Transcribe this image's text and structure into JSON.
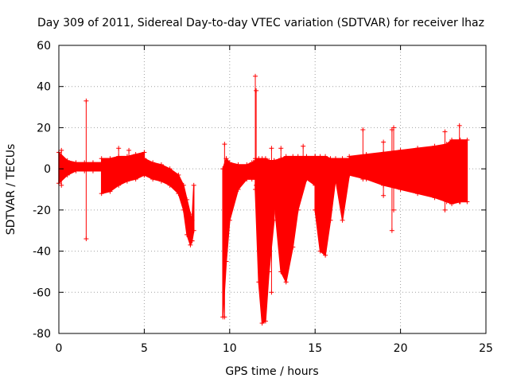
{
  "chart_data": {
    "type": "scatter",
    "title": "Day 309 of 2011, Sidereal Day-to-day VTEC variation (SDTVAR) for receiver lhaz",
    "xlabel": "GPS time / hours",
    "ylabel": "SDTVAR / TECUs",
    "xlim": [
      0,
      25
    ],
    "ylim": [
      -80,
      60
    ],
    "x_ticks": [
      0,
      5,
      10,
      15,
      20,
      25
    ],
    "y_ticks": [
      -80,
      -60,
      -40,
      -20,
      0,
      20,
      40,
      60
    ],
    "x_tick_labels": [
      "0",
      "5",
      "10",
      "15",
      "20",
      "25"
    ],
    "y_tick_labels": [
      "-80",
      "-60",
      "-40",
      "-20",
      "0",
      "20",
      "40",
      "60"
    ],
    "grid": true,
    "legend": "none",
    "color": "#ff0000",
    "series": [
      {
        "name": "SDTVAR",
        "marker": "+",
        "bands": [
          {
            "x": [
              0.0,
              0.5,
              1.0,
              1.5,
              2.0,
              2.5
            ],
            "upper": [
              8,
              4,
              3,
              3,
              3,
              3
            ],
            "lower": [
              -7,
              -3,
              -1,
              -1,
              -1,
              -1
            ]
          },
          {
            "x": [
              2.5,
              3.0,
              3.5,
              4.0,
              4.5,
              5.0
            ],
            "upper": [
              5,
              5,
              6,
              6,
              7,
              8
            ],
            "lower": [
              -12,
              -11,
              -8,
              -6,
              -5,
              -3
            ]
          },
          {
            "x": [
              5.0,
              5.5,
              6.0,
              6.5,
              7.0,
              7.3,
              7.5,
              7.7,
              7.8
            ],
            "upper": [
              5,
              3,
              2,
              0,
              -3,
              -8,
              -15,
              -22,
              -25
            ],
            "lower": [
              -3,
              -5,
              -6,
              -8,
              -12,
              -20,
              -32,
              -37,
              -35
            ]
          },
          {
            "x": [
              7.8,
              7.9
            ],
            "upper": [
              -25,
              -8
            ],
            "lower": [
              -35,
              -30
            ]
          },
          {
            "x": [
              9.6,
              9.8,
              10.0,
              10.5,
              11.0,
              11.3,
              11.5
            ],
            "upper": [
              0,
              5,
              3,
              2,
              2,
              3,
              4
            ],
            "lower": [
              -72,
              -45,
              -25,
              -10,
              -5,
              -5,
              -5
            ]
          },
          {
            "x": [
              11.5,
              11.7,
              11.9,
              12.1,
              12.3,
              12.6
            ],
            "upper": [
              5,
              5,
              5,
              5,
              4,
              4
            ],
            "lower": [
              -10,
              -55,
              -75,
              -74,
              -50,
              -25
            ]
          },
          {
            "x": [
              12.6,
              13.0,
              13.3,
              13.7,
              14.0,
              14.5,
              15.0
            ],
            "upper": [
              4,
              5,
              6,
              6,
              6,
              6,
              6
            ],
            "lower": [
              -15,
              -50,
              -55,
              -38,
              -20,
              -5,
              -8
            ]
          },
          {
            "x": [
              15.0,
              15.3,
              15.6,
              15.9,
              16.2,
              16.6,
              17.0
            ],
            "upper": [
              6,
              6,
              6,
              5,
              5,
              5,
              5
            ],
            "lower": [
              -20,
              -40,
              -42,
              -25,
              -5,
              -25,
              -3
            ]
          },
          {
            "x": [
              17.0,
              18.0,
              19.0,
              20.0,
              21.0,
              22.0,
              22.7,
              23.0,
              23.5,
              23.9
            ],
            "upper": [
              6,
              7,
              8,
              9,
              10,
              11,
              12,
              14,
              14,
              14
            ],
            "lower": [
              -3,
              -5,
              -8,
              -10,
              -12,
              -14,
              -16,
              -17,
              -16,
              -16
            ]
          }
        ],
        "spikes": [
          {
            "x": 0.15,
            "low": -8,
            "high": 9
          },
          {
            "x": 1.6,
            "low": -34,
            "high": 33
          },
          {
            "x": 3.5,
            "low": 0,
            "high": 10
          },
          {
            "x": 4.1,
            "low": 0,
            "high": 9
          },
          {
            "x": 9.7,
            "low": -72,
            "high": 12
          },
          {
            "x": 11.5,
            "low": -5,
            "high": 45
          },
          {
            "x": 11.55,
            "low": -8,
            "high": 38
          },
          {
            "x": 12.45,
            "low": -60,
            "high": 10
          },
          {
            "x": 13.0,
            "low": -5,
            "high": 10
          },
          {
            "x": 14.3,
            "low": -3,
            "high": 11
          },
          {
            "x": 17.8,
            "low": -5,
            "high": 19
          },
          {
            "x": 19.0,
            "low": -13,
            "high": 13
          },
          {
            "x": 19.5,
            "low": -30,
            "high": 19
          },
          {
            "x": 19.6,
            "low": -20,
            "high": 20
          },
          {
            "x": 22.6,
            "low": -20,
            "high": 18
          },
          {
            "x": 23.45,
            "low": -16,
            "high": 21
          }
        ]
      }
    ]
  }
}
